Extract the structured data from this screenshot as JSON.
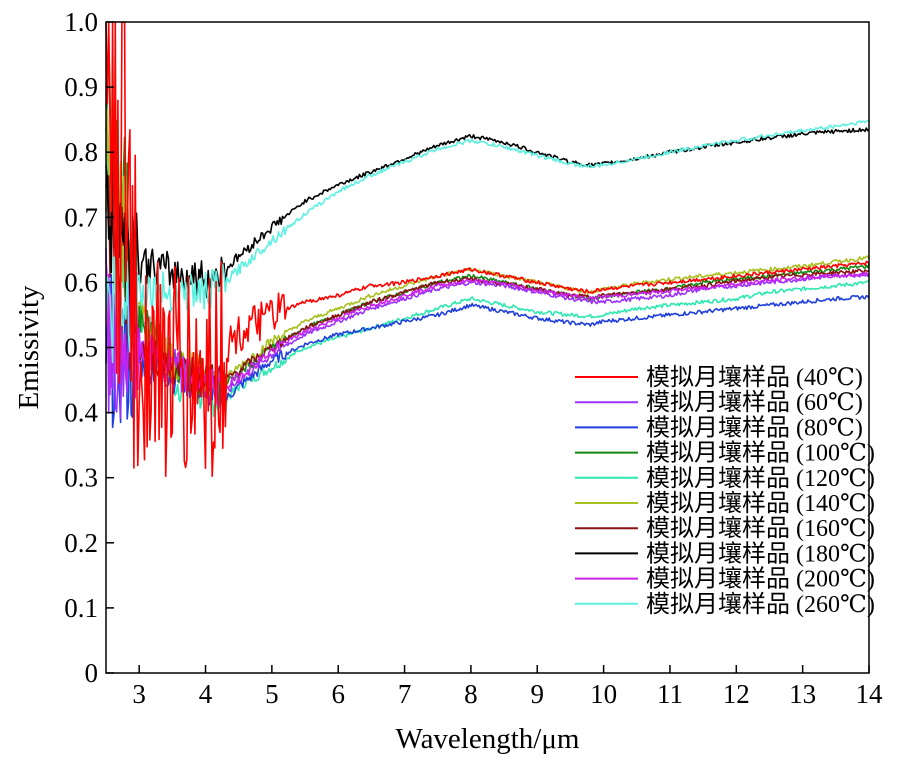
{
  "chart_data": {
    "type": "line",
    "xlabel": "Wavelength/μm",
    "ylabel": "Emissivity",
    "xlim": [
      2.5,
      14
    ],
    "ylim": [
      0,
      1.0
    ],
    "xticks": [
      3,
      4,
      5,
      6,
      7,
      8,
      9,
      10,
      11,
      12,
      13,
      14
    ],
    "yticks": [
      "0",
      "0.1",
      "0.2",
      "0.3",
      "0.4",
      "0.5",
      "0.6",
      "0.7",
      "0.8",
      "0.9",
      "1.0"
    ],
    "grid": false,
    "legend_position": "bottom-right",
    "x": [
      2.5,
      3,
      3.5,
      4,
      4.3,
      4.5,
      5,
      5.5,
      6,
      6.5,
      7,
      7.5,
      8,
      8.5,
      9,
      9.5,
      9.8,
      10,
      10.5,
      11,
      11.5,
      12,
      12.5,
      13,
      13.5,
      14
    ],
    "series": [
      {
        "name": "模拟月壤样品 (40℃)",
        "color": "#ff0000",
        "values": [
          1.0,
          0.5,
          0.46,
          0.45,
          0.5,
          0.52,
          0.55,
          0.57,
          0.58,
          0.595,
          0.6,
          0.61,
          0.62,
          0.61,
          0.6,
          0.59,
          0.585,
          0.59,
          0.595,
          0.6,
          0.605,
          0.61,
          0.615,
          0.62,
          0.625,
          0.63
        ]
      },
      {
        "name": "模拟月壤样品 (60℃)",
        "color": "#9b30ff",
        "values": [
          0.52,
          0.5,
          0.47,
          0.44,
          0.43,
          0.45,
          0.49,
          0.52,
          0.54,
          0.56,
          0.575,
          0.59,
          0.6,
          0.595,
          0.585,
          0.575,
          0.57,
          0.57,
          0.575,
          0.58,
          0.59,
          0.595,
          0.6,
          0.605,
          0.61,
          0.612
        ]
      },
      {
        "name": "模拟月壤样品 (80℃)",
        "color": "#1f3fdc",
        "values": [
          0.5,
          0.48,
          0.46,
          0.44,
          0.42,
          0.44,
          0.48,
          0.505,
          0.52,
          0.53,
          0.54,
          0.55,
          0.565,
          0.555,
          0.545,
          0.538,
          0.535,
          0.54,
          0.545,
          0.55,
          0.555,
          0.56,
          0.565,
          0.57,
          0.575,
          0.578
        ]
      },
      {
        "name": "模拟月壤样品 (100℃)",
        "color": "#138a13",
        "values": [
          0.9,
          0.55,
          0.48,
          0.45,
          0.445,
          0.46,
          0.5,
          0.53,
          0.55,
          0.57,
          0.585,
          0.6,
          0.61,
          0.6,
          0.59,
          0.58,
          0.575,
          0.578,
          0.585,
          0.59,
          0.6,
          0.605,
          0.61,
          0.615,
          0.62,
          0.625
        ]
      },
      {
        "name": "模拟月壤样品 (120℃)",
        "color": "#2ee8b0",
        "values": [
          0.85,
          0.55,
          0.45,
          0.425,
          0.42,
          0.44,
          0.47,
          0.5,
          0.515,
          0.53,
          0.545,
          0.56,
          0.575,
          0.565,
          0.555,
          0.55,
          0.548,
          0.55,
          0.56,
          0.565,
          0.57,
          0.575,
          0.585,
          0.59,
          0.595,
          0.6
        ]
      },
      {
        "name": "模拟月壤样品 (140℃)",
        "color": "#a8c020",
        "values": [
          0.8,
          0.55,
          0.48,
          0.455,
          0.45,
          0.47,
          0.51,
          0.54,
          0.56,
          0.58,
          0.595,
          0.61,
          0.62,
          0.61,
          0.6,
          0.59,
          0.585,
          0.59,
          0.598,
          0.605,
          0.61,
          0.615,
          0.62,
          0.625,
          0.632,
          0.638
        ]
      },
      {
        "name": "模拟月壤样品 (160℃)",
        "color": "#8b1010",
        "values": [
          0.7,
          0.5,
          0.47,
          0.455,
          0.45,
          0.465,
          0.5,
          0.53,
          0.55,
          0.57,
          0.585,
          0.6,
          0.605,
          0.598,
          0.59,
          0.58,
          0.578,
          0.58,
          0.585,
          0.59,
          0.595,
          0.602,
          0.608,
          0.612,
          0.615,
          0.618
        ]
      },
      {
        "name": "模拟月壤样品 (180℃)",
        "color": "#000000",
        "values": [
          0.7,
          0.63,
          0.615,
          0.605,
          0.62,
          0.64,
          0.685,
          0.725,
          0.75,
          0.77,
          0.79,
          0.81,
          0.825,
          0.815,
          0.8,
          0.785,
          0.78,
          0.782,
          0.79,
          0.8,
          0.808,
          0.815,
          0.822,
          0.828,
          0.832,
          0.835
        ]
      },
      {
        "name": "模拟月壤样品 (200℃)",
        "color": "#cc22ee",
        "values": [
          0.55,
          0.5,
          0.47,
          0.445,
          0.44,
          0.455,
          0.495,
          0.525,
          0.545,
          0.565,
          0.58,
          0.595,
          0.603,
          0.598,
          0.588,
          0.58,
          0.575,
          0.578,
          0.582,
          0.587,
          0.592,
          0.598,
          0.603,
          0.607,
          0.61,
          0.613
        ]
      },
      {
        "name": "模拟月壤样品 (260℃)",
        "color": "#5ef0e0",
        "values": [
          0.55,
          0.59,
          0.585,
          0.585,
          0.6,
          0.62,
          0.665,
          0.705,
          0.74,
          0.765,
          0.785,
          0.805,
          0.818,
          0.808,
          0.795,
          0.782,
          0.778,
          0.78,
          0.79,
          0.8,
          0.81,
          0.818,
          0.826,
          0.833,
          0.84,
          0.848
        ]
      }
    ]
  }
}
